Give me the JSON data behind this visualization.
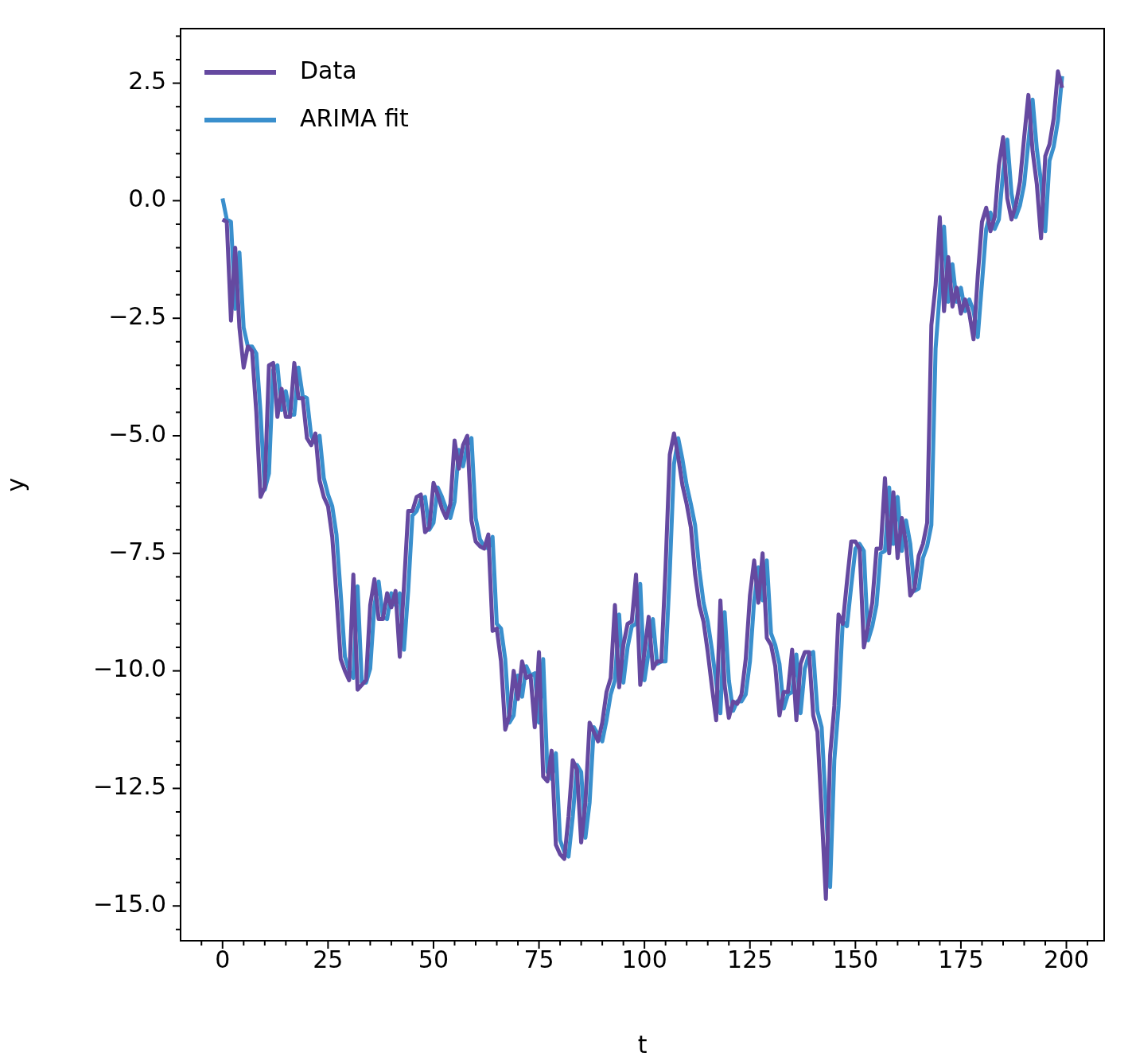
{
  "chart_data": {
    "type": "line",
    "xlabel": "t",
    "ylabel": "y",
    "xlim": [
      -9.95,
      208.95
    ],
    "ylim": [
      -15.74,
      3.66
    ],
    "xticks": [
      {
        "value": -5,
        "label": null
      },
      0,
      {
        "value": 5,
        "label": null
      },
      {
        "value": 10,
        "label": null
      },
      {
        "value": 15,
        "label": null
      },
      {
        "value": 20,
        "label": null
      },
      25,
      {
        "value": 30,
        "label": null
      },
      {
        "value": 35,
        "label": null
      },
      {
        "value": 40,
        "label": null
      },
      {
        "value": 45,
        "label": null
      },
      50,
      {
        "value": 55,
        "label": null
      },
      {
        "value": 60,
        "label": null
      },
      {
        "value": 65,
        "label": null
      },
      {
        "value": 70,
        "label": null
      },
      75,
      {
        "value": 80,
        "label": null
      },
      {
        "value": 85,
        "label": null
      },
      {
        "value": 90,
        "label": null
      },
      {
        "value": 95,
        "label": null
      },
      100,
      {
        "value": 105,
        "label": null
      },
      {
        "value": 110,
        "label": null
      },
      {
        "value": 115,
        "label": null
      },
      {
        "value": 120,
        "label": null
      },
      125,
      {
        "value": 130,
        "label": null
      },
      {
        "value": 135,
        "label": null
      },
      {
        "value": 140,
        "label": null
      },
      {
        "value": 145,
        "label": null
      },
      150,
      {
        "value": 155,
        "label": null
      },
      {
        "value": 160,
        "label": null
      },
      {
        "value": 165,
        "label": null
      },
      {
        "value": 170,
        "label": null
      },
      175,
      {
        "value": 180,
        "label": null
      },
      {
        "value": 185,
        "label": null
      },
      {
        "value": 190,
        "label": null
      },
      {
        "value": 195,
        "label": null
      },
      200,
      {
        "value": 205,
        "label": null
      }
    ],
    "yticks": [
      {
        "value": -15.5,
        "label": null
      },
      {
        "value": -15,
        "label": "−15.0"
      },
      {
        "value": -14.5,
        "label": null
      },
      {
        "value": -14,
        "label": null
      },
      {
        "value": -13.5,
        "label": null
      },
      {
        "value": -13,
        "label": null
      },
      {
        "value": -12.5,
        "label": "−12.5"
      },
      {
        "value": -12,
        "label": null
      },
      {
        "value": -11.5,
        "label": null
      },
      {
        "value": -11,
        "label": null
      },
      {
        "value": -10.5,
        "label": null
      },
      {
        "value": -10,
        "label": "−10.0"
      },
      {
        "value": -9.5,
        "label": null
      },
      {
        "value": -9,
        "label": null
      },
      {
        "value": -8.5,
        "label": null
      },
      {
        "value": -8,
        "label": null
      },
      {
        "value": -7.5,
        "label": "−7.5"
      },
      {
        "value": -7,
        "label": null
      },
      {
        "value": -6.5,
        "label": null
      },
      {
        "value": -6,
        "label": null
      },
      {
        "value": -5.5,
        "label": null
      },
      {
        "value": -5,
        "label": "−5.0"
      },
      {
        "value": -4.5,
        "label": null
      },
      {
        "value": -4,
        "label": null
      },
      {
        "value": -3.5,
        "label": null
      },
      {
        "value": -3,
        "label": null
      },
      {
        "value": -2.5,
        "label": "−2.5"
      },
      {
        "value": -2,
        "label": null
      },
      {
        "value": -1.5,
        "label": null
      },
      {
        "value": -1,
        "label": null
      },
      {
        "value": -0.5,
        "label": null
      },
      {
        "value": 0,
        "label": "0.0"
      },
      {
        "value": 0.5,
        "label": null
      },
      {
        "value": 1,
        "label": null
      },
      {
        "value": 1.5,
        "label": null
      },
      {
        "value": 2,
        "label": null
      },
      2.5,
      {
        "value": 3,
        "label": null
      },
      {
        "value": 3.5,
        "label": null
      }
    ],
    "legend": "top left",
    "marker": "none",
    "line_style": "solid",
    "x": [
      0,
      1,
      2,
      3,
      4,
      5,
      6,
      7,
      8,
      9,
      10,
      11,
      12,
      13,
      14,
      15,
      16,
      17,
      18,
      19,
      20,
      21,
      22,
      23,
      24,
      25,
      26,
      27,
      28,
      29,
      30,
      31,
      32,
      33,
      34,
      35,
      36,
      37,
      38,
      39,
      40,
      41,
      42,
      43,
      44,
      45,
      46,
      47,
      48,
      49,
      50,
      51,
      52,
      53,
      54,
      55,
      56,
      57,
      58,
      59,
      60,
      61,
      62,
      63,
      64,
      65,
      66,
      67,
      68,
      69,
      70,
      71,
      72,
      73,
      74,
      75,
      76,
      77,
      78,
      79,
      80,
      81,
      82,
      83,
      84,
      85,
      86,
      87,
      88,
      89,
      90,
      91,
      92,
      93,
      94,
      95,
      96,
      97,
      98,
      99,
      100,
      101,
      102,
      103,
      104,
      105,
      106,
      107,
      108,
      109,
      110,
      111,
      112,
      113,
      114,
      115,
      116,
      117,
      118,
      119,
      120,
      121,
      122,
      123,
      124,
      125,
      126,
      127,
      128,
      129,
      130,
      131,
      132,
      133,
      134,
      135,
      136,
      137,
      138,
      139,
      140,
      141,
      142,
      143,
      144,
      145,
      146,
      147,
      148,
      149,
      150,
      151,
      152,
      153,
      154,
      155,
      156,
      157,
      158,
      159,
      160,
      161,
      162,
      163,
      164,
      165,
      166,
      167,
      168,
      169,
      170,
      171,
      172,
      173,
      174,
      175,
      176,
      177,
      178,
      179,
      180,
      181,
      182,
      183,
      184,
      185,
      186,
      187,
      188,
      189,
      190,
      191,
      192,
      193,
      194,
      195,
      196,
      197,
      198,
      199
    ],
    "series": [
      {
        "name": "Data",
        "color": "#6549a0",
        "values": [
          -0.4,
          -0.45,
          -2.55,
          -1.0,
          -2.7,
          -3.55,
          -3.1,
          -3.2,
          -4.5,
          -6.3,
          -6.1,
          -3.5,
          -3.45,
          -4.6,
          -4.0,
          -4.6,
          -4.6,
          -3.45,
          -4.2,
          -4.2,
          -5.05,
          -5.2,
          -4.95,
          -5.95,
          -6.3,
          -6.5,
          -7.15,
          -8.4,
          -9.75,
          -10.0,
          -10.2,
          -7.95,
          -10.4,
          -10.3,
          -10.2,
          -8.6,
          -8.05,
          -8.9,
          -8.9,
          -8.35,
          -8.65,
          -8.3,
          -9.7,
          -8.2,
          -6.6,
          -6.6,
          -6.3,
          -6.25,
          -7.05,
          -6.95,
          -6.0,
          -6.25,
          -6.55,
          -6.75,
          -6.45,
          -5.1,
          -5.7,
          -5.2,
          -5.0,
          -6.8,
          -7.25,
          -7.35,
          -7.4,
          -7.1,
          -9.15,
          -9.1,
          -9.8,
          -11.25,
          -10.95,
          -10.0,
          -10.6,
          -9.8,
          -10.15,
          -10.1,
          -11.2,
          -9.6,
          -12.25,
          -12.35,
          -11.7,
          -13.7,
          -13.9,
          -14.0,
          -13.1,
          -11.9,
          -12.1,
          -13.65,
          -12.8,
          -11.1,
          -11.3,
          -11.5,
          -11.1,
          -10.45,
          -10.15,
          -8.6,
          -10.35,
          -9.45,
          -9.0,
          -8.95,
          -7.95,
          -10.3,
          -9.6,
          -8.85,
          -9.95,
          -9.8,
          -9.8,
          -7.8,
          -5.4,
          -4.95,
          -5.45,
          -6.05,
          -6.45,
          -6.95,
          -7.95,
          -8.6,
          -8.95,
          -9.6,
          -10.35,
          -11.05,
          -8.5,
          -10.3,
          -11.0,
          -10.65,
          -10.7,
          -10.5,
          -9.75,
          -8.4,
          -7.65,
          -8.55,
          -7.5,
          -9.3,
          -9.45,
          -9.9,
          -10.95,
          -10.45,
          -10.45,
          -9.55,
          -11.05,
          -9.85,
          -9.6,
          -9.6,
          -10.95,
          -11.3,
          -13.0,
          -14.85,
          -11.8,
          -10.75,
          -8.8,
          -9.0,
          -8.1,
          -7.25,
          -7.25,
          -7.4,
          -9.5,
          -9.05,
          -8.55,
          -7.4,
          -7.4,
          -5.9,
          -7.5,
          -6.2,
          -7.6,
          -6.75,
          -7.3,
          -8.4,
          -8.25,
          -7.55,
          -7.3,
          -6.85,
          -2.65,
          -1.8,
          -0.35,
          -2.35,
          -1.2,
          -2.25,
          -1.85,
          -2.4,
          -2.1,
          -2.4,
          -2.95,
          -1.6,
          -0.45,
          -0.15,
          -0.65,
          -0.35,
          0.75,
          1.35,
          0.05,
          -0.4,
          -0.1,
          0.4,
          1.35,
          2.25,
          1.05,
          0.35,
          -0.8,
          0.95,
          1.2,
          1.75,
          2.75,
          2.4
        ]
      },
      {
        "name": "ARIMA fit",
        "color": "#3a8fcd",
        "values": [
          0.05,
          -0.4,
          -0.45,
          -2.3,
          -1.1,
          -2.7,
          -3.1,
          -3.1,
          -3.25,
          -4.5,
          -6.15,
          -5.8,
          -3.6,
          -3.5,
          -4.45,
          -4.05,
          -4.55,
          -4.55,
          -3.55,
          -4.15,
          -4.2,
          -5.0,
          -5.15,
          -5.0,
          -5.9,
          -6.25,
          -6.5,
          -7.1,
          -8.35,
          -9.7,
          -10.0,
          -10.15,
          -8.2,
          -10.25,
          -10.25,
          -9.95,
          -8.6,
          -8.1,
          -8.85,
          -8.9,
          -8.35,
          -8.6,
          -8.35,
          -9.55,
          -8.3,
          -6.7,
          -6.6,
          -6.35,
          -6.3,
          -7.0,
          -6.85,
          -6.1,
          -6.3,
          -6.55,
          -6.75,
          -6.4,
          -5.3,
          -5.65,
          -5.2,
          -5.05,
          -6.75,
          -7.2,
          -7.35,
          -7.4,
          -7.15,
          -9.0,
          -9.1,
          -9.75,
          -11.1,
          -10.95,
          -10.1,
          -10.55,
          -9.9,
          -10.1,
          -10.05,
          -11.1,
          -9.75,
          -12.15,
          -12.3,
          -11.75,
          -13.6,
          -13.85,
          -13.95,
          -13.1,
          -12.0,
          -12.15,
          -13.55,
          -12.8,
          -11.2,
          -11.35,
          -11.5,
          -11.05,
          -10.5,
          -10.2,
          -8.8,
          -10.25,
          -9.5,
          -9.05,
          -9.0,
          -8.15,
          -10.2,
          -9.6,
          -8.9,
          -9.85,
          -9.8,
          -9.8,
          -7.9,
          -5.6,
          -5.05,
          -5.5,
          -6.05,
          -6.45,
          -6.9,
          -7.85,
          -8.55,
          -8.95,
          -9.55,
          -10.25,
          -10.9,
          -8.75,
          -10.2,
          -10.85,
          -10.65,
          -10.65,
          -10.5,
          -9.8,
          -8.5,
          -7.8,
          -8.5,
          -7.65,
          -9.2,
          -9.45,
          -9.85,
          -10.8,
          -10.5,
          -10.45,
          -9.65,
          -10.9,
          -9.95,
          -9.65,
          -9.6,
          -10.85,
          -11.2,
          -12.9,
          -14.6,
          -11.9,
          -10.75,
          -8.95,
          -9.05,
          -8.2,
          -7.4,
          -7.3,
          -7.45,
          -9.35,
          -9.05,
          -8.6,
          -7.5,
          -7.45,
          -6.1,
          -7.3,
          -6.3,
          -7.45,
          -6.8,
          -7.3,
          -8.3,
          -8.25,
          -7.6,
          -7.35,
          -6.9,
          -3.15,
          -1.95,
          -0.55,
          -2.15,
          -1.35,
          -2.15,
          -1.85,
          -2.35,
          -2.1,
          -2.35,
          -2.9,
          -1.75,
          -0.6,
          -0.25,
          -0.6,
          -0.4,
          0.6,
          1.3,
          0.15,
          -0.35,
          -0.1,
          0.35,
          1.25,
          2.15,
          1.1,
          0.4,
          -0.65,
          0.85,
          1.15,
          1.7,
          2.65
        ]
      }
    ]
  }
}
